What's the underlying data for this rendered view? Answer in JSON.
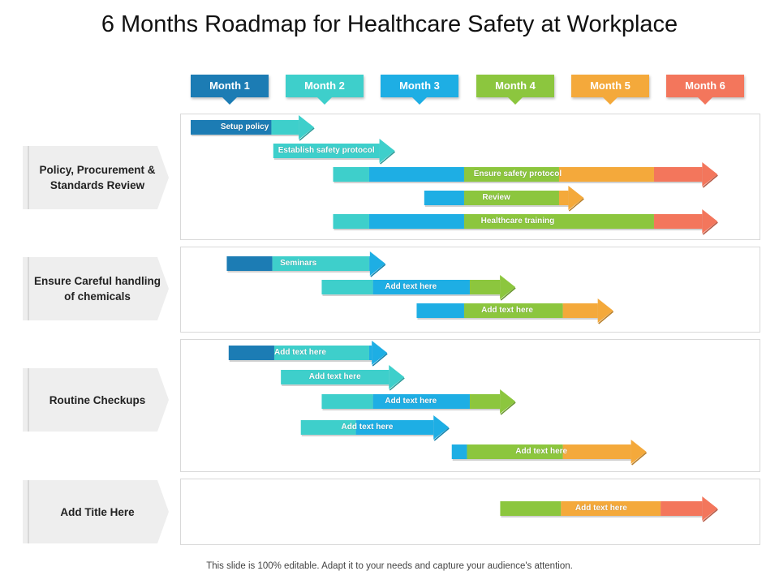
{
  "title": "6 Months Roadmap for Healthcare Safety at Workplace",
  "footer": "This slide is 100% editable. Adapt it to your needs and capture your audience's attention.",
  "colors": {
    "dark_blue": "#1c7cb4",
    "teal": "#3ecfcb",
    "blue": "#1eaee4",
    "green": "#8cc63e",
    "orange": "#f4a93b",
    "red": "#f3765c"
  },
  "months": [
    {
      "label": "Month 1",
      "color": "#1c7cb4"
    },
    {
      "label": "Month 2",
      "color": "#3ecfcb"
    },
    {
      "label": "Month 3",
      "color": "#1eaee4"
    },
    {
      "label": "Month 4",
      "color": "#8cc63e"
    },
    {
      "label": "Month 5",
      "color": "#f4a93b"
    },
    {
      "label": "Month 6",
      "color": "#f3765c"
    }
  ],
  "sections": [
    {
      "title": "Policy, Procurement & Standards Review",
      "tasks": [
        {
          "label": "Setup policy",
          "start": 0.0,
          "end": 1.3,
          "segments": [
            [
              "#1c7cb4",
              0.0,
              0.85
            ],
            [
              "#3ecfcb",
              0.85,
              1.3
            ]
          ]
        },
        {
          "label": "Establish safety protocol",
          "start": 0.87,
          "end": 2.15,
          "segments": [
            [
              "#3ecfcb",
              0.87,
              2.15
            ]
          ]
        },
        {
          "label": "Ensure safety protocol",
          "start": 1.5,
          "end": 5.55,
          "segments": [
            [
              "#3ecfcb",
              1.5,
              1.88
            ],
            [
              "#1eaee4",
              1.88,
              2.88
            ],
            [
              "#8cc63e",
              2.88,
              3.88
            ],
            [
              "#f4a93b",
              3.88,
              4.88
            ],
            [
              "#f3765c",
              4.88,
              5.55
            ]
          ]
        },
        {
          "label": "Review",
          "start": 2.46,
          "end": 4.14,
          "segments": [
            [
              "#1eaee4",
              2.46,
              2.88
            ],
            [
              "#8cc63e",
              2.88,
              3.88
            ],
            [
              "#f4a93b",
              3.88,
              4.14
            ]
          ]
        },
        {
          "label": "Healthcare training",
          "start": 1.5,
          "end": 5.55,
          "segments": [
            [
              "#3ecfcb",
              1.5,
              1.88
            ],
            [
              "#1eaee4",
              1.88,
              2.88
            ],
            [
              "#8cc63e",
              2.88,
              4.88
            ],
            [
              "#f3765c",
              4.88,
              5.55
            ]
          ]
        }
      ]
    },
    {
      "title": "Ensure Careful handling of chemicals",
      "tasks": [
        {
          "label": "Seminars",
          "start": 0.38,
          "end": 2.05,
          "segments": [
            [
              "#1c7cb4",
              0.38,
              0.86
            ],
            [
              "#3ecfcb",
              0.86,
              1.88
            ],
            [
              "#1eaee4",
              1.88,
              2.05
            ]
          ]
        },
        {
          "label": "Add text here",
          "start": 1.38,
          "end": 3.42,
          "segments": [
            [
              "#3ecfcb",
              1.38,
              1.92
            ],
            [
              "#1eaee4",
              1.92,
              2.94
            ],
            [
              "#8cc63e",
              2.94,
              3.42
            ]
          ]
        },
        {
          "label": "Add text here",
          "start": 2.38,
          "end": 4.45,
          "segments": [
            [
              "#1eaee4",
              2.38,
              2.88
            ],
            [
              "#8cc63e",
              2.88,
              3.92
            ],
            [
              "#f4a93b",
              3.92,
              4.45
            ]
          ]
        }
      ]
    },
    {
      "title": "Routine Checkups",
      "tasks": [
        {
          "label": "Add text here",
          "start": 0.4,
          "end": 2.07,
          "segments": [
            [
              "#1c7cb4",
              0.4,
              0.88
            ],
            [
              "#3ecfcb",
              0.88,
              1.88
            ],
            [
              "#1eaee4",
              1.88,
              2.07
            ]
          ]
        },
        {
          "label": "Add text here",
          "start": 0.95,
          "end": 2.25,
          "segments": [
            [
              "#3ecfcb",
              0.95,
              2.25
            ]
          ]
        },
        {
          "label": "Add text here",
          "start": 1.38,
          "end": 3.42,
          "segments": [
            [
              "#3ecfcb",
              1.38,
              1.92
            ],
            [
              "#1eaee4",
              1.92,
              2.94
            ],
            [
              "#8cc63e",
              2.94,
              3.42
            ]
          ]
        },
        {
          "label": "Add text here",
          "start": 1.16,
          "end": 2.72,
          "segments": [
            [
              "#3ecfcb",
              1.16,
              1.74
            ],
            [
              "#1eaee4",
              1.74,
              2.72
            ]
          ]
        },
        {
          "label": "Add text here",
          "start": 2.75,
          "end": 4.8,
          "segments": [
            [
              "#1eaee4",
              2.75,
              2.91
            ],
            [
              "#8cc63e",
              2.91,
              3.92
            ],
            [
              "#f4a93b",
              3.92,
              4.8
            ]
          ]
        }
      ]
    },
    {
      "title": "Add Title Here",
      "tasks": [
        {
          "label": "Add text here",
          "start": 3.26,
          "end": 5.55,
          "segments": [
            [
              "#8cc63e",
              3.26,
              3.9
            ],
            [
              "#f4a93b",
              3.9,
              4.95
            ],
            [
              "#f3765c",
              4.95,
              5.55
            ]
          ]
        }
      ]
    }
  ]
}
